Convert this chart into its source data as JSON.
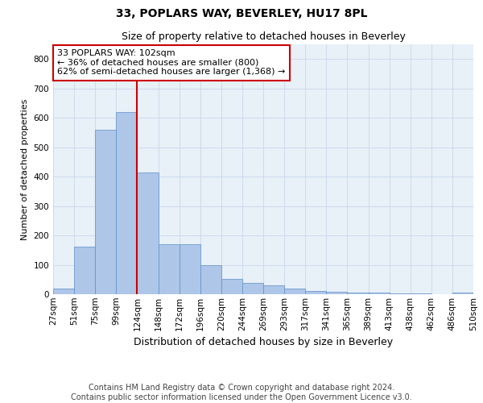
{
  "title": "33, POPLARS WAY, BEVERLEY, HU17 8PL",
  "subtitle": "Size of property relative to detached houses in Beverley",
  "xlabel": "Distribution of detached houses by size in Beverley",
  "ylabel": "Number of detached properties",
  "bar_values": [
    18,
    163,
    560,
    620,
    413,
    170,
    170,
    100,
    52,
    38,
    30,
    18,
    12,
    8,
    5,
    5,
    2,
    2,
    0,
    5
  ],
  "bar_labels": [
    "27sqm",
    "51sqm",
    "75sqm",
    "99sqm",
    "124sqm",
    "148sqm",
    "172sqm",
    "196sqm",
    "220sqm",
    "244sqm",
    "269sqm",
    "293sqm",
    "317sqm",
    "341sqm",
    "365sqm",
    "389sqm",
    "413sqm",
    "438sqm",
    "462sqm",
    "486sqm",
    "510sqm"
  ],
  "bar_color": "#aec6e8",
  "bar_edge_color": "#5b8fc9",
  "annotation_line1": "33 POPLARS WAY: 102sqm",
  "annotation_line2": "← 36% of detached houses are smaller (800)",
  "annotation_line3": "62% of semi-detached houses are larger (1,368) →",
  "annotation_box_color": "#ffffff",
  "annotation_box_edge": "#cc0000",
  "vline_color": "#cc0000",
  "vline_x_index": 3,
  "ylim": [
    0,
    850
  ],
  "yticks": [
    0,
    100,
    200,
    300,
    400,
    500,
    600,
    700,
    800
  ],
  "grid_color": "#c8d8ea",
  "background_color": "#e8f0f8",
  "footer1": "Contains HM Land Registry data © Crown copyright and database right 2024.",
  "footer2": "Contains public sector information licensed under the Open Government Licence v3.0.",
  "title_fontsize": 10,
  "subtitle_fontsize": 9,
  "xlabel_fontsize": 9,
  "ylabel_fontsize": 8,
  "tick_fontsize": 7.5,
  "annotation_fontsize": 8,
  "footer_fontsize": 7
}
